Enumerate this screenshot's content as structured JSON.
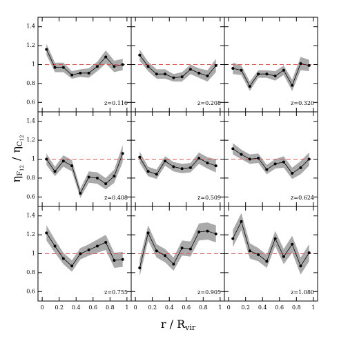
{
  "xlabel_main": "r / R",
  "xlabel_sub": "vir",
  "ylabel_parts": [
    "η",
    "F",
    "12",
    "/",
    "η",
    "C",
    "12"
  ],
  "chart_data": [
    {
      "type": "line",
      "annotation": "z=0.116",
      "x": [
        0.05,
        0.15,
        0.25,
        0.35,
        0.45,
        0.55,
        0.65,
        0.75,
        0.85,
        0.95
      ],
      "values": [
        1.16,
        0.97,
        0.97,
        0.89,
        0.91,
        0.91,
        0.98,
        1.08,
        0.98,
        1.0
      ],
      "errors": [
        0.06,
        0.05,
        0.05,
        0.04,
        0.04,
        0.05,
        0.05,
        0.07,
        0.06,
        0.06
      ],
      "color": "#000000",
      "band_color": "#aaaaaa",
      "hline": 1,
      "hline_color": "#e05050",
      "xlim": [
        -0.05,
        1.05
      ],
      "ylim": [
        0.5,
        1.5
      ],
      "xticks": [
        0,
        0.2,
        0.4,
        0.6,
        0.8,
        1
      ],
      "yticks": [
        0.6,
        0.8,
        1,
        1.2,
        1.4
      ]
    },
    {
      "type": "line",
      "annotation": "z=0.208",
      "x": [
        0.05,
        0.15,
        0.25,
        0.35,
        0.45,
        0.55,
        0.65,
        0.75,
        0.85,
        0.95
      ],
      "values": [
        1.1,
        0.98,
        0.9,
        0.9,
        0.86,
        0.87,
        0.95,
        0.91,
        0.88,
        0.99
      ],
      "errors": [
        0.06,
        0.05,
        0.05,
        0.05,
        0.04,
        0.05,
        0.05,
        0.05,
        0.06,
        0.07
      ],
      "color": "#000000",
      "band_color": "#aaaaaa",
      "hline": 1,
      "hline_color": "#e05050",
      "xlim": [
        -0.05,
        1.05
      ],
      "ylim": [
        0.5,
        1.5
      ],
      "xticks": [
        0,
        0.2,
        0.4,
        0.6,
        0.8,
        1
      ],
      "yticks": [
        0.6,
        0.8,
        1,
        1.2,
        1.4
      ]
    },
    {
      "type": "line",
      "annotation": "z=0.320",
      "x": [
        0.05,
        0.15,
        0.25,
        0.35,
        0.45,
        0.55,
        0.65,
        0.75,
        0.85,
        0.95
      ],
      "values": [
        0.96,
        0.94,
        0.77,
        0.9,
        0.9,
        0.88,
        0.94,
        0.78,
        1.01,
        0.99
      ],
      "errors": [
        0.06,
        0.05,
        0.05,
        0.04,
        0.04,
        0.05,
        0.05,
        0.06,
        0.07,
        0.06
      ],
      "color": "#000000",
      "band_color": "#aaaaaa",
      "hline": 1,
      "hline_color": "#e05050",
      "xlim": [
        -0.05,
        1.05
      ],
      "ylim": [
        0.5,
        1.5
      ],
      "xticks": [
        0,
        0.2,
        0.4,
        0.6,
        0.8,
        1
      ],
      "yticks": [
        0.6,
        0.8,
        1,
        1.2,
        1.4
      ]
    },
    {
      "type": "line",
      "annotation": "z=0.408",
      "x": [
        0.05,
        0.15,
        0.25,
        0.35,
        0.45,
        0.55,
        0.65,
        0.75,
        0.85,
        0.95
      ],
      "values": [
        1.0,
        0.87,
        0.98,
        0.93,
        0.64,
        0.81,
        0.8,
        0.74,
        0.82,
        1.06
      ],
      "errors": [
        0.06,
        0.05,
        0.06,
        0.06,
        0.05,
        0.06,
        0.06,
        0.06,
        0.07,
        0.09
      ],
      "color": "#000000",
      "band_color": "#aaaaaa",
      "hline": 1,
      "hline_color": "#e05050",
      "xlim": [
        -0.05,
        1.05
      ],
      "ylim": [
        0.5,
        1.5
      ],
      "xticks": [
        0,
        0.2,
        0.4,
        0.6,
        0.8,
        1
      ],
      "yticks": [
        0.6,
        0.8,
        1,
        1.2,
        1.4
      ]
    },
    {
      "type": "line",
      "annotation": "z=0.509",
      "x": [
        0.05,
        0.15,
        0.25,
        0.35,
        0.45,
        0.55,
        0.65,
        0.75,
        0.85,
        0.95
      ],
      "values": [
        1.02,
        0.87,
        0.84,
        0.98,
        0.92,
        0.9,
        0.91,
        1.01,
        0.96,
        0.93
      ],
      "errors": [
        0.06,
        0.05,
        0.05,
        0.05,
        0.05,
        0.05,
        0.05,
        0.06,
        0.06,
        0.07
      ],
      "color": "#000000",
      "band_color": "#aaaaaa",
      "hline": 1,
      "hline_color": "#e05050",
      "xlim": [
        -0.05,
        1.05
      ],
      "ylim": [
        0.5,
        1.5
      ],
      "xticks": [
        0,
        0.2,
        0.4,
        0.6,
        0.8,
        1
      ],
      "yticks": [
        0.6,
        0.8,
        1,
        1.2,
        1.4
      ]
    },
    {
      "type": "line",
      "annotation": "z=0.624",
      "x": [
        0.05,
        0.15,
        0.25,
        0.35,
        0.45,
        0.55,
        0.65,
        0.75,
        0.85,
        0.95
      ],
      "values": [
        1.11,
        1.05,
        1.0,
        1.01,
        0.89,
        0.95,
        0.97,
        0.85,
        0.91,
        1.0
      ],
      "errors": [
        0.06,
        0.05,
        0.05,
        0.05,
        0.05,
        0.05,
        0.06,
        0.06,
        0.07,
        0.07
      ],
      "color": "#000000",
      "band_color": "#aaaaaa",
      "hline": 1,
      "hline_color": "#e05050",
      "xlim": [
        -0.05,
        1.05
      ],
      "ylim": [
        0.5,
        1.5
      ],
      "xticks": [
        0,
        0.2,
        0.4,
        0.6,
        0.8,
        1
      ],
      "yticks": [
        0.6,
        0.8,
        1,
        1.2,
        1.4
      ]
    },
    {
      "type": "line",
      "annotation": "z=0.755",
      "x": [
        0.05,
        0.15,
        0.25,
        0.35,
        0.45,
        0.55,
        0.65,
        0.75,
        0.85,
        0.95
      ],
      "values": [
        1.22,
        1.08,
        0.95,
        0.87,
        1.0,
        1.04,
        1.08,
        1.12,
        0.93,
        0.94
      ],
      "errors": [
        0.08,
        0.07,
        0.06,
        0.06,
        0.06,
        0.06,
        0.07,
        0.08,
        0.08,
        0.08
      ],
      "color": "#000000",
      "band_color": "#aaaaaa",
      "hline": 1,
      "hline_color": "#e05050",
      "xlim": [
        -0.05,
        1.05
      ],
      "ylim": [
        0.5,
        1.5
      ],
      "xticks": [
        0,
        0.2,
        0.4,
        0.6,
        0.8,
        1
      ],
      "yticks": [
        0.6,
        0.8,
        1,
        1.2,
        1.4
      ]
    },
    {
      "type": "line",
      "annotation": "z=0.905",
      "x": [
        0.05,
        0.15,
        0.25,
        0.35,
        0.45,
        0.55,
        0.65,
        0.75,
        0.85,
        0.95
      ],
      "values": [
        0.85,
        1.22,
        1.03,
        0.98,
        0.89,
        1.06,
        1.05,
        1.23,
        1.24,
        1.21
      ],
      "errors": [
        0.09,
        0.08,
        0.07,
        0.07,
        0.07,
        0.08,
        0.08,
        0.09,
        0.09,
        0.09
      ],
      "color": "#000000",
      "band_color": "#aaaaaa",
      "hline": 1,
      "hline_color": "#e05050",
      "xlim": [
        -0.05,
        1.05
      ],
      "ylim": [
        0.5,
        1.5
      ],
      "xticks": [
        0,
        0.2,
        0.4,
        0.6,
        0.8,
        1
      ],
      "yticks": [
        0.6,
        0.8,
        1,
        1.2,
        1.4
      ]
    },
    {
      "type": "line",
      "annotation": "z=1.080",
      "x": [
        0.05,
        0.15,
        0.25,
        0.35,
        0.45,
        0.55,
        0.65,
        0.75,
        0.85,
        0.95
      ],
      "values": [
        1.16,
        1.34,
        1.03,
        0.99,
        0.92,
        1.16,
        0.97,
        1.1,
        0.87,
        1.01
      ],
      "errors": [
        0.09,
        0.09,
        0.08,
        0.07,
        0.07,
        0.08,
        0.08,
        0.09,
        0.09,
        0.09
      ],
      "color": "#000000",
      "band_color": "#aaaaaa",
      "hline": 1,
      "hline_color": "#e05050",
      "xlim": [
        -0.05,
        1.05
      ],
      "ylim": [
        0.5,
        1.5
      ],
      "xticks": [
        0,
        0.2,
        0.4,
        0.6,
        0.8,
        1
      ],
      "yticks": [
        0.6,
        0.8,
        1,
        1.2,
        1.4
      ]
    }
  ]
}
